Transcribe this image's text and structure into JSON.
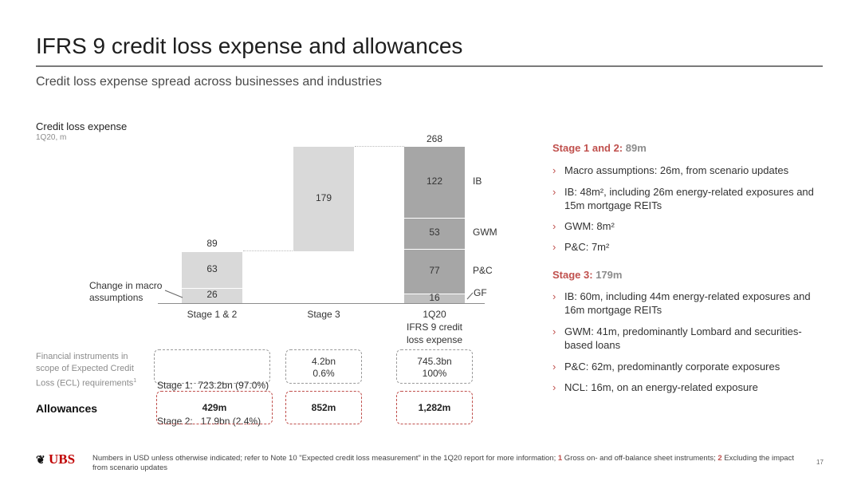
{
  "title": "IFRS 9 credit loss expense and allowances",
  "subtitle": "Credit loss expense spread across businesses and industries",
  "chart": {
    "title": "Credit loss expense",
    "units": "1Q20, m",
    "change_label_1": "Change in macro",
    "change_label_2": "assumptions",
    "total_label": "268",
    "stage12_total": "89"
  },
  "chart_data": {
    "type": "bar",
    "categories": [
      "Stage 1 & 2",
      "Stage 3",
      "1Q20 IFRS 9 credit loss expense"
    ],
    "category_labels": [
      "Stage 1 & 2",
      "Stage 3",
      "1Q20",
      "IFRS 9 credit",
      "loss expense"
    ],
    "stage_1_2": {
      "segments": [
        26,
        63
      ],
      "segment_labels": [
        "26",
        "63"
      ],
      "total": 89
    },
    "stage_3": {
      "value": 179,
      "label": "179"
    },
    "total_by_business": [
      {
        "name": "GF",
        "value": 16,
        "label": "16"
      },
      {
        "name": "P&C",
        "value": 77,
        "label": "77"
      },
      {
        "name": "GWM",
        "value": 53,
        "label": "53"
      },
      {
        "name": "IB",
        "value": 122,
        "label": "122"
      }
    ],
    "total": 268,
    "colors": {
      "light": "#d9d9d9",
      "mid": "#bfbfbf",
      "dark": "#a6a6a6",
      "divider": "#ffffff"
    }
  },
  "instruments": {
    "label_1": "Financial instruments in",
    "label_2": "scope of Expected Credit",
    "label_3": "Loss (ECL) requirements",
    "label_sup": "1",
    "stage12_line1": "Stage 1:  723.2bn (97.0%)",
    "stage12_line2": "Stage 2:   17.9bn (2.4%)",
    "stage3_line1": "4.2bn",
    "stage3_line2": "0.6%",
    "total_line1": "745.3bn",
    "total_line2": "100%"
  },
  "allowances": {
    "label": "Allowances",
    "stage12": "429m",
    "stage3": "852m",
    "total": "1,282m"
  },
  "right": {
    "stage12_head": "Stage 1 and 2:",
    "stage12_amt": " 89m",
    "stage12_bullets": [
      "Macro assumptions: 26m, from scenario updates",
      "IB: 48m², including 26m energy-related exposures and 15m mortgage REITs",
      "GWM: 8m²",
      "P&C: 7m²"
    ],
    "stage3_head": "Stage 3:",
    "stage3_amt": " 179m",
    "stage3_bullets": [
      "IB: 60m, including 44m energy-related exposures and 16m mortgage REITs",
      "GWM: 41m, predominantly Lombard and securities-based loans",
      "P&C: 62m, predominantly corporate exposures",
      "NCL: 16m, on an energy-related exposure"
    ],
    "chevron": "›"
  },
  "footer": {
    "logo": "UBS",
    "note_1": "Numbers in USD unless otherwise indicated; refer to Note 10 \"Expected credit loss measurement\" in the 1Q20 report for more information; ",
    "note_num1": "1",
    "note_2": " Gross on- and off-balance sheet instruments; ",
    "note_num2": "2",
    "note_3": " Excluding the impact from scenario updates",
    "page": "17"
  }
}
